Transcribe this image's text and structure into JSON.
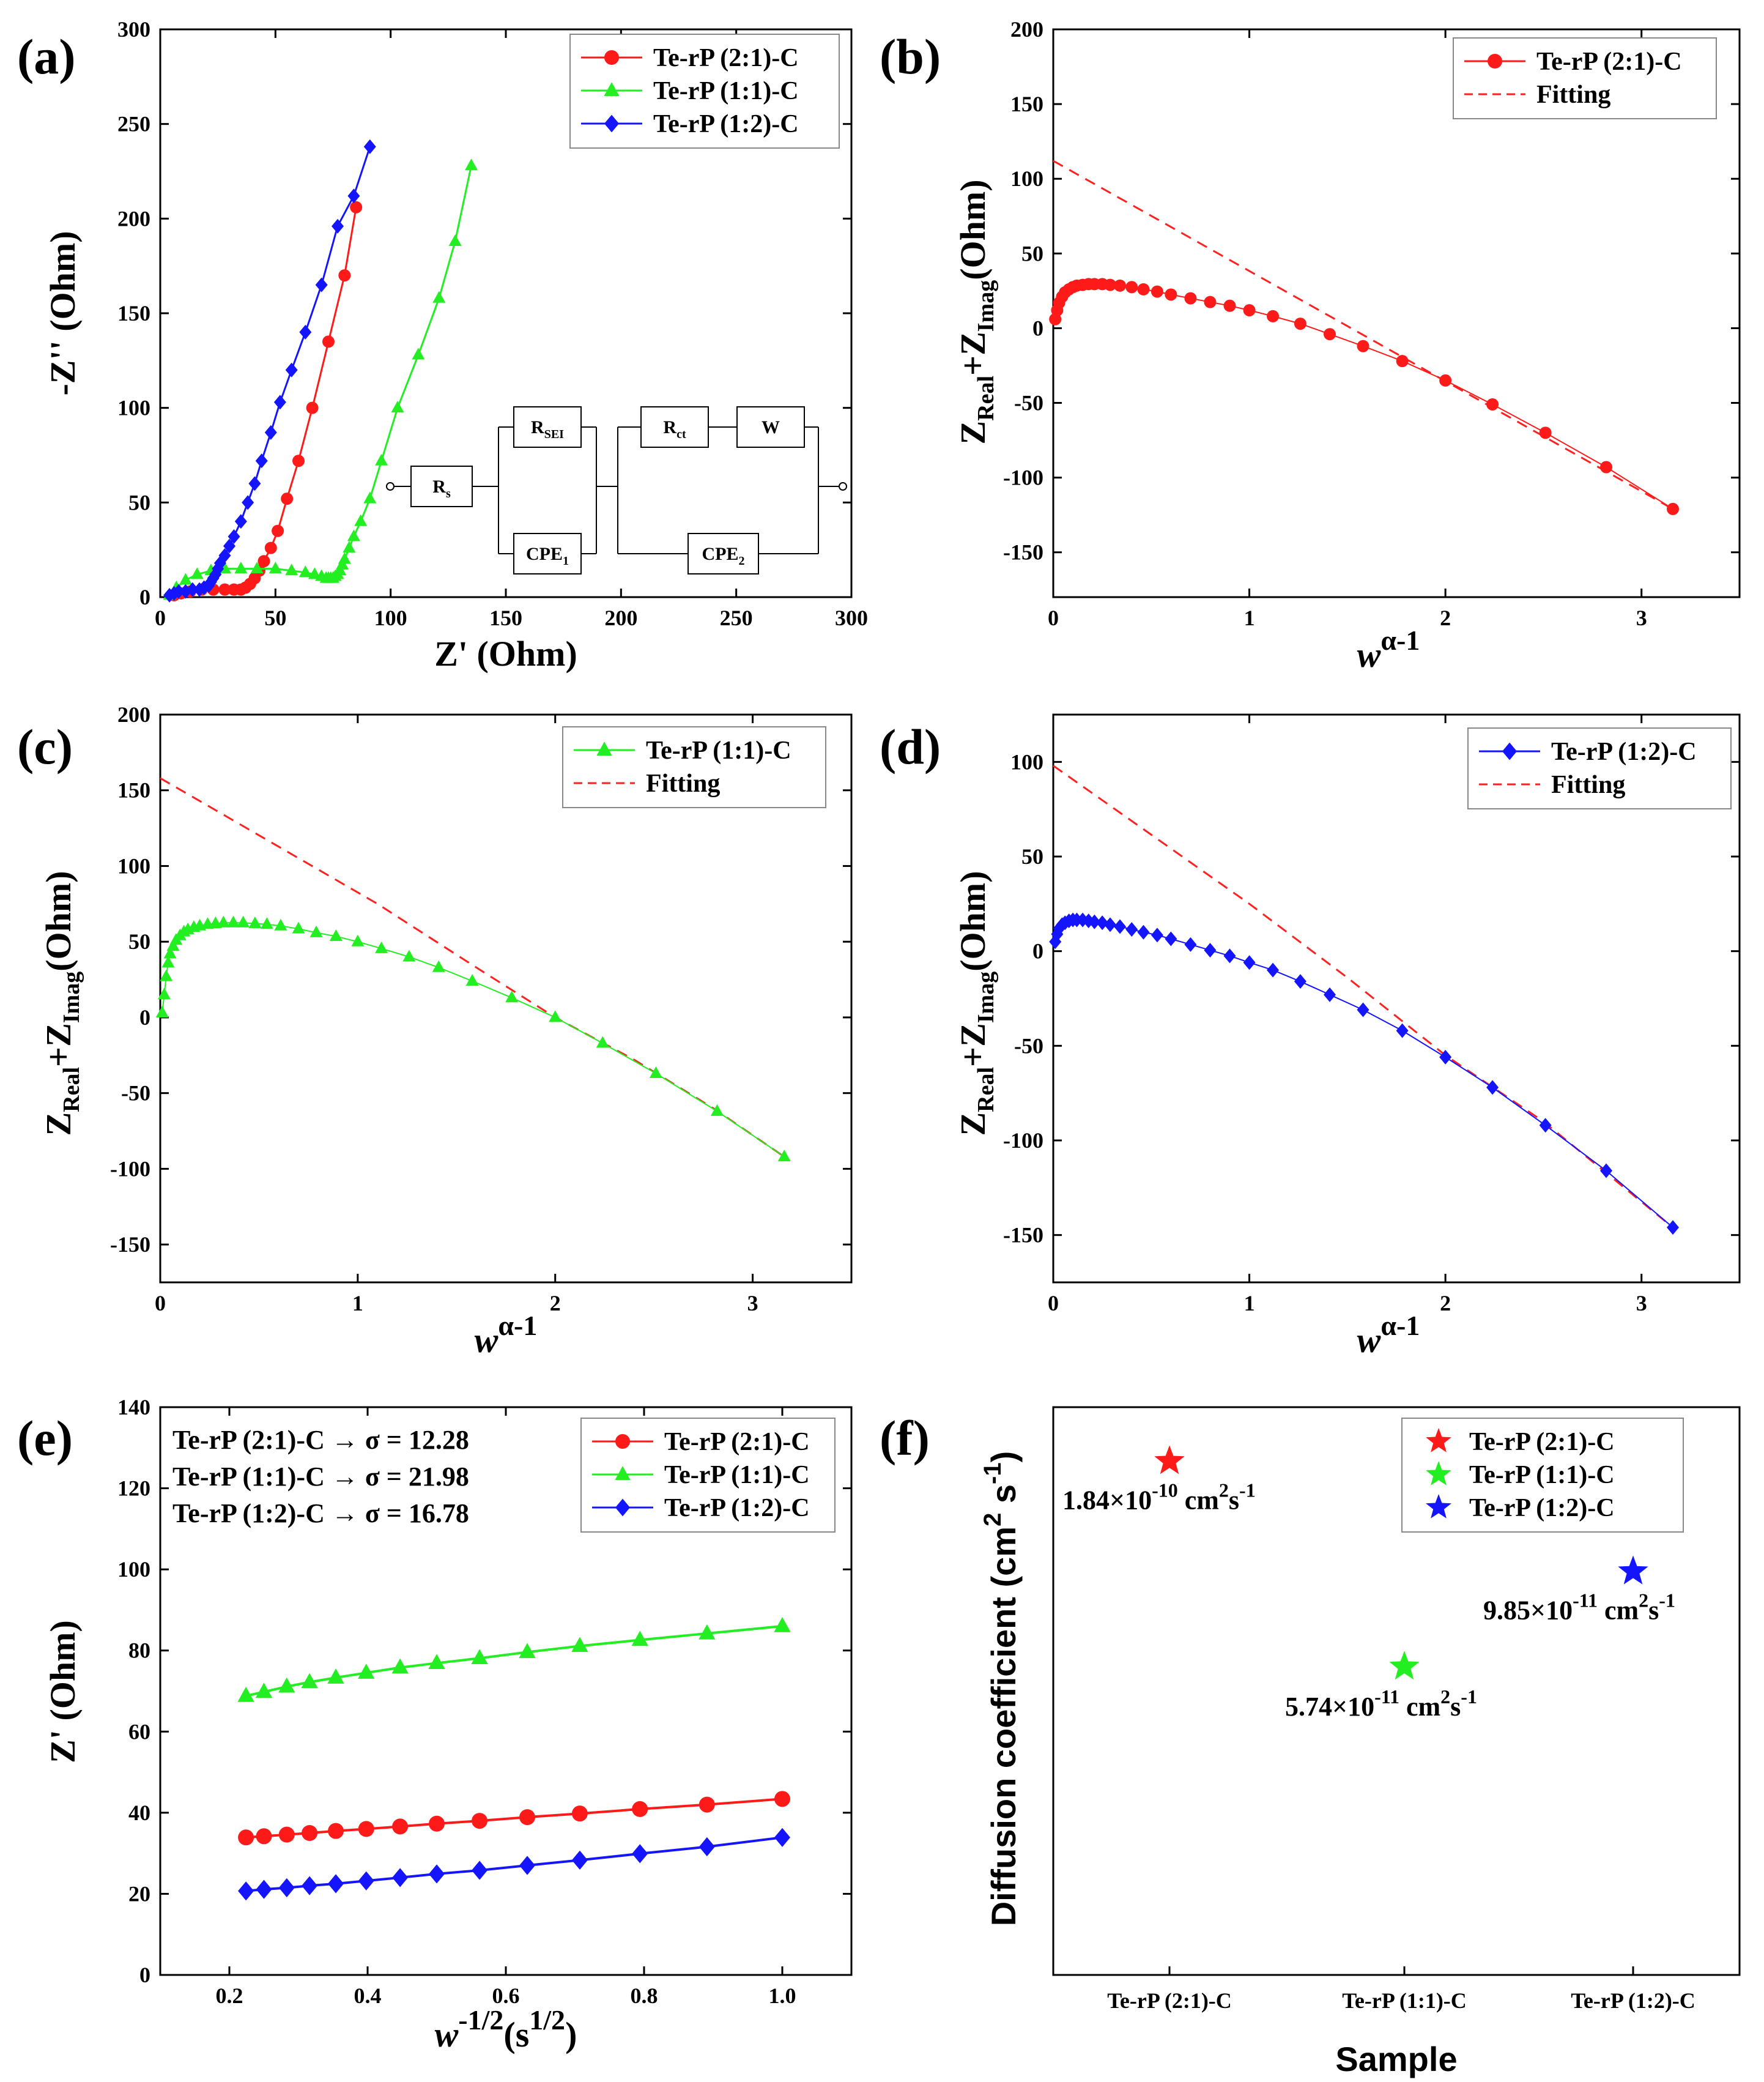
{
  "colors": {
    "red": "#ff1a1a",
    "green": "#22ee22",
    "blue": "#1414ff",
    "fit": "#ff2020"
  },
  "chart_data": [
    {
      "id": "a",
      "panel_label": "(a)",
      "type": "line",
      "xlabel": "Z' (Ohm)",
      "ylabel": "-Z'' (Ohm)",
      "xlim": [
        0,
        300
      ],
      "ylim": [
        0,
        300
      ],
      "xticks": [
        0,
        50,
        100,
        150,
        200,
        250,
        300
      ],
      "yticks": [
        0,
        50,
        100,
        150,
        200,
        250,
        300
      ],
      "legend": "top-right",
      "series": [
        {
          "name": "Te-rP (2:1)-C",
          "color": "red",
          "marker": "circle",
          "x": [
            6,
            9,
            13,
            18,
            23,
            28,
            32,
            35,
            37,
            39,
            41,
            43,
            45,
            48,
            51,
            55,
            60,
            66,
            73,
            80,
            85
          ],
          "y": [
            1,
            2,
            3,
            4,
            4,
            4,
            4,
            4,
            5,
            7,
            10,
            14,
            19,
            26,
            35,
            52,
            72,
            100,
            135,
            170,
            206
          ]
        },
        {
          "name": "Te-rP (1:1)-C",
          "color": "green",
          "marker": "triangle",
          "x": [
            4,
            7,
            11,
            16,
            22,
            28,
            35,
            42,
            50,
            57,
            63,
            67,
            70,
            72,
            73,
            74,
            75,
            76,
            77,
            78,
            79,
            80,
            82,
            84,
            87,
            91,
            96,
            103,
            112,
            121,
            128,
            135
          ],
          "y": [
            1,
            5,
            9,
            12,
            14,
            15,
            15,
            15,
            15,
            14,
            13,
            12,
            11,
            10,
            10,
            10,
            10,
            11,
            12,
            14,
            17,
            20,
            26,
            32,
            40,
            52,
            72,
            100,
            128,
            158,
            188,
            228
          ]
        },
        {
          "name": "Te-rP (1:2)-C",
          "color": "blue",
          "marker": "diamond",
          "x": [
            4,
            6,
            8,
            11,
            14,
            17,
            19,
            21,
            22,
            23,
            24,
            25,
            26,
            28,
            30,
            32,
            35,
            38,
            41,
            44,
            48,
            52,
            57,
            63,
            70,
            77,
            84,
            91
          ],
          "y": [
            1,
            2,
            3,
            3,
            4,
            4,
            5,
            6,
            8,
            10,
            12,
            15,
            18,
            22,
            27,
            32,
            40,
            50,
            60,
            72,
            87,
            103,
            120,
            140,
            165,
            196,
            212,
            238
          ]
        }
      ],
      "circuit": {
        "rs": "R",
        "rs_sub": "s",
        "rsei": "R",
        "rsei_sub": "SEI",
        "cpe1": "CPE",
        "cpe1_sub": "1",
        "rct": "R",
        "rct_sub": "ct",
        "w": "W",
        "cpe2": "CPE",
        "cpe2_sub": "2"
      }
    },
    {
      "id": "b",
      "panel_label": "(b)",
      "type": "line",
      "xlabel_main": "w",
      "xlabel_sup": "α-1",
      "ylabel_main": "Z",
      "ylabel_sub1": "Real",
      "ylabel_mid": "+Z",
      "ylabel_sub2": "Imag",
      "ylabel_tail": "(Ohm)",
      "xlim": [
        0,
        3.5
      ],
      "ylim": [
        -180,
        200
      ],
      "xticks": [
        0,
        1,
        2,
        3
      ],
      "yticks": [
        -150,
        -100,
        -50,
        0,
        50,
        100,
        150,
        200
      ],
      "legend": "top-right",
      "series": [
        {
          "name": "Te-rP (2:1)-C",
          "color": "red",
          "marker": "circle",
          "x": [
            0.01,
            0.02,
            0.03,
            0.045,
            0.06,
            0.08,
            0.1,
            0.12,
            0.15,
            0.18,
            0.21,
            0.25,
            0.29,
            0.34,
            0.4,
            0.46,
            0.53,
            0.6,
            0.7,
            0.8,
            0.9,
            1.0,
            1.12,
            1.26,
            1.41,
            1.58,
            1.78,
            2.0,
            2.24,
            2.51,
            2.82,
            3.16
          ],
          "y": [
            6,
            12,
            17,
            21,
            24,
            26,
            27.5,
            28.5,
            29,
            29.5,
            29.5,
            29.5,
            29,
            28.5,
            27.5,
            26,
            24.5,
            22.5,
            20,
            17.5,
            15,
            12,
            8,
            3,
            -4,
            -12,
            -22,
            -35,
            -51,
            -70,
            -93,
            -121
          ]
        }
      ],
      "fit": {
        "name": "Fitting",
        "x": [
          0,
          3.16
        ],
        "y": [
          112,
          -121
        ]
      }
    },
    {
      "id": "c",
      "panel_label": "(c)",
      "type": "line",
      "xlabel_main": "w",
      "xlabel_sup": "α-1",
      "ylabel_main": "Z",
      "ylabel_sub1": "Real",
      "ylabel_mid": "+Z",
      "ylabel_sub2": "Imag",
      "ylabel_tail": "(Ohm)",
      "xlim": [
        0,
        3.5
      ],
      "ylim": [
        -175,
        200
      ],
      "xticks": [
        0,
        1,
        2,
        3
      ],
      "yticks": [
        -150,
        -100,
        -50,
        0,
        50,
        100,
        150,
        200
      ],
      "legend": "top-right",
      "series": [
        {
          "name": "Te-rP (1:1)-C",
          "color": "green",
          "marker": "triangle",
          "x": [
            0.01,
            0.02,
            0.03,
            0.04,
            0.05,
            0.065,
            0.08,
            0.1,
            0.12,
            0.14,
            0.17,
            0.2,
            0.24,
            0.28,
            0.32,
            0.37,
            0.42,
            0.48,
            0.54,
            0.61,
            0.7,
            0.79,
            0.89,
            1.0,
            1.12,
            1.26,
            1.41,
            1.58,
            1.78,
            2.0,
            2.24,
            2.51,
            2.82,
            3.16
          ],
          "y": [
            3,
            15,
            27,
            36,
            42,
            47,
            51,
            54,
            56.5,
            58,
            59.5,
            60.5,
            61.5,
            62,
            62.5,
            62.5,
            62.5,
            62,
            61.5,
            60.5,
            58.5,
            56,
            53.5,
            50,
            45.5,
            40,
            33,
            24,
            13,
            0,
            -17,
            -37,
            -62,
            -92
          ]
        }
      ],
      "fit": {
        "name": "Fitting",
        "x": [
          0,
          1.1,
          1.6,
          2.0,
          2.4,
          2.8,
          3.16
        ],
        "y": [
          158,
          75,
          33,
          0,
          -28,
          -60,
          -92
        ]
      }
    },
    {
      "id": "d",
      "panel_label": "(d)",
      "type": "line",
      "xlabel_main": "w",
      "xlabel_sup": "α-1",
      "ylabel_main": "Z",
      "ylabel_sub1": "Real",
      "ylabel_mid": "+Z",
      "ylabel_sub2": "Imag",
      "ylabel_tail": "(Ohm)",
      "xlim": [
        0,
        3.5
      ],
      "ylim": [
        -175,
        125
      ],
      "xticks": [
        0,
        1,
        2,
        3
      ],
      "yticks": [
        -150,
        -100,
        -50,
        0,
        50,
        100
      ],
      "legend": "top-right",
      "series": [
        {
          "name": "Te-rP (1:2)-C",
          "color": "blue",
          "marker": "diamond",
          "x": [
            0.01,
            0.02,
            0.03,
            0.045,
            0.06,
            0.08,
            0.1,
            0.12,
            0.15,
            0.18,
            0.21,
            0.25,
            0.29,
            0.34,
            0.4,
            0.46,
            0.53,
            0.6,
            0.7,
            0.8,
            0.9,
            1.0,
            1.12,
            1.26,
            1.41,
            1.58,
            1.78,
            2.0,
            2.24,
            2.51,
            2.82,
            3.16
          ],
          "y": [
            5,
            9,
            12,
            14,
            15,
            16,
            16.5,
            16.5,
            16.5,
            16,
            15.5,
            15,
            14,
            13,
            11.5,
            10,
            8.5,
            6.5,
            3.5,
            0.5,
            -2.5,
            -6,
            -10,
            -16,
            -23,
            -31,
            -42,
            -56,
            -72,
            -92,
            -116,
            -146
          ]
        }
      ],
      "fit": {
        "name": "Fitting",
        "x": [
          0,
          1.0,
          1.5,
          2.0,
          2.5,
          3.16
        ],
        "y": [
          98,
          25,
          -14,
          -55,
          -90,
          -146
        ]
      }
    },
    {
      "id": "e",
      "panel_label": "(e)",
      "type": "line",
      "xlabel_main": "w",
      "xlabel_sup": "-1/2",
      "xlabel_tail": "(s",
      "xlabel_tail_sup": "1/2",
      "xlabel_end": ")",
      "ylabel": "Z' (Ohm)",
      "xlim": [
        0.1,
        1.1
      ],
      "ylim": [
        0,
        140
      ],
      "xticks": [
        0.2,
        0.4,
        0.6,
        0.8,
        1.0
      ],
      "yticks": [
        0,
        20,
        40,
        60,
        80,
        100,
        120,
        140
      ],
      "legend": "top-right",
      "x": [
        0.224,
        0.25,
        0.283,
        0.316,
        0.354,
        0.398,
        0.447,
        0.5,
        0.562,
        0.631,
        0.707,
        0.794,
        0.891,
        1.0
      ],
      "series": [
        {
          "name": "Te-rP (2:1)-C",
          "color": "red",
          "marker": "circle",
          "values": [
            33.9,
            34.2,
            34.6,
            35,
            35.5,
            36,
            36.6,
            37.3,
            38,
            38.9,
            39.8,
            40.9,
            42,
            43.4
          ]
        },
        {
          "name": "Te-rP (1:1)-C",
          "color": "green",
          "marker": "triangle",
          "values": [
            68.8,
            69.8,
            71.1,
            72.2,
            73.3,
            74.5,
            75.8,
            76.9,
            78.1,
            79.6,
            81.1,
            82.6,
            84.2,
            86
          ]
        },
        {
          "name": "Te-rP (1:2)-C",
          "color": "blue",
          "marker": "diamond",
          "values": [
            20.7,
            21.1,
            21.5,
            22,
            22.5,
            23.2,
            24,
            24.9,
            25.8,
            27,
            28.3,
            29.9,
            31.6,
            33.9
          ]
        }
      ],
      "annotations": [
        {
          "text": "Te-rP (2:1)-C → σ = 12.28",
          "color": "red"
        },
        {
          "text": "Te-rP (1:1)-C → σ = 21.98",
          "color": "green"
        },
        {
          "text": "Te-rP (1:2)-C → σ = 16.78",
          "color": "blue"
        }
      ]
    },
    {
      "id": "f",
      "panel_label": "(f)",
      "type": "scatter",
      "xlabel": "Sample",
      "ylabel_main": "Diffusion coefficient (cm",
      "ylabel_sup1": "2",
      "ylabel_mid": " s",
      "ylabel_sup2": "-1",
      "ylabel_end": ")",
      "categories": [
        "Te-rP (2:1)-C",
        "Te-rP (1:1)-C",
        "Te-rP (1:2)-C"
      ],
      "values": [
        1.84e-10,
        5.74e-11,
        9.85e-11
      ],
      "ylim": [
        1e-11,
        2.5e-10
      ],
      "legend": "top-right",
      "series": [
        {
          "name": "Te-rP (2:1)-C",
          "color": "red",
          "marker": "star"
        },
        {
          "name": "Te-rP (1:1)-C",
          "color": "green",
          "marker": "star"
        },
        {
          "name": "Te-rP (1:2)-C",
          "color": "blue",
          "marker": "star"
        }
      ],
      "labels": [
        {
          "mant": "1.84×10",
          "exp": "-10",
          "unit1": " cm",
          "sup1": "2",
          "unit2": "s",
          "sup2": "-1"
        },
        {
          "mant": "5.74×10",
          "exp": "-11",
          "unit1": " cm",
          "sup1": "2",
          "unit2": "s",
          "sup2": "-1"
        },
        {
          "mant": "9.85×10",
          "exp": "-11",
          "unit1": " cm",
          "sup1": "2",
          "unit2": "s",
          "sup2": "-1"
        }
      ]
    }
  ]
}
